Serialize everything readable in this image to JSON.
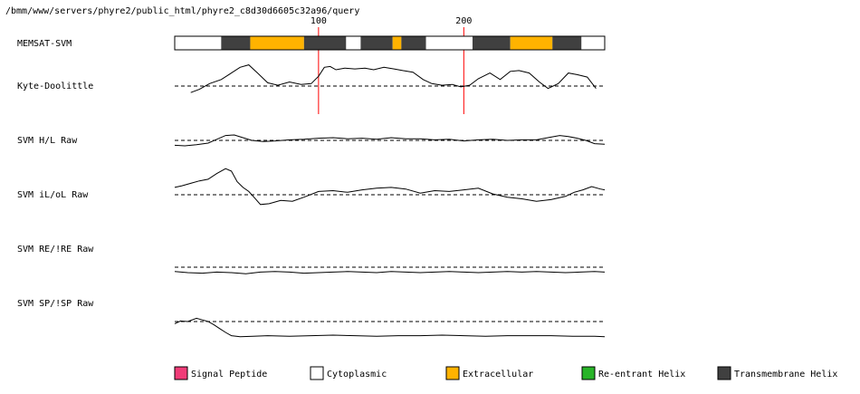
{
  "path_label": "/bmm/www/servers/phyre2/public_html/phyre2_c8d30d6605c32a96/query",
  "colors": {
    "cytoplasmic": "#ffffff",
    "extracellular": "#ffb300",
    "transmembrane": "#404040",
    "signal_peptide": "#f03c78",
    "reentrant": "#28b428",
    "marker": "#ff0000"
  },
  "chart_data": {
    "type": "line",
    "x_range": [
      1,
      297
    ],
    "position_markers": [
      100,
      200
    ],
    "position_marker_labels": [
      "100",
      "200"
    ],
    "memsat": {
      "label": "MEMSAT-SVM",
      "segments": [
        {
          "start": 1,
          "end": 33,
          "type": "cytoplasmic"
        },
        {
          "start": 33,
          "end": 53,
          "type": "transmembrane"
        },
        {
          "start": 53,
          "end": 90,
          "type": "extracellular"
        },
        {
          "start": 90,
          "end": 119,
          "type": "transmembrane"
        },
        {
          "start": 119,
          "end": 129,
          "type": "cytoplasmic"
        },
        {
          "start": 129,
          "end": 151,
          "type": "transmembrane"
        },
        {
          "start": 151,
          "end": 157,
          "type": "extracellular"
        },
        {
          "start": 157,
          "end": 174,
          "type": "transmembrane"
        },
        {
          "start": 174,
          "end": 206,
          "type": "cytoplasmic"
        },
        {
          "start": 206,
          "end": 232,
          "type": "transmembrane"
        },
        {
          "start": 232,
          "end": 261,
          "type": "extracellular"
        },
        {
          "start": 261,
          "end": 281,
          "type": "transmembrane"
        },
        {
          "start": 281,
          "end": 297,
          "type": "cytoplasmic"
        }
      ]
    },
    "series": [
      {
        "name": "Kyte-Doolittle",
        "x": [
          12,
          18,
          25,
          33,
          40,
          46,
          52,
          58,
          65,
          72,
          80,
          88,
          95,
          100,
          104,
          108,
          112,
          118,
          125,
          132,
          138,
          145,
          152,
          158,
          165,
          172,
          178,
          185,
          192,
          198,
          204,
          210,
          218,
          225,
          232,
          238,
          245,
          252,
          258,
          265,
          272,
          278,
          285,
          291
        ],
        "y": [
          -0.8,
          -0.4,
          0.3,
          0.8,
          1.6,
          2.3,
          2.6,
          1.6,
          0.4,
          0.1,
          0.5,
          0.2,
          0.3,
          1.2,
          2.3,
          2.4,
          2.0,
          2.2,
          2.1,
          2.2,
          2.0,
          2.3,
          2.1,
          1.9,
          1.7,
          0.8,
          0.3,
          0.1,
          0.2,
          -0.1,
          0.1,
          0.9,
          1.6,
          0.8,
          1.8,
          1.9,
          1.6,
          0.5,
          -0.3,
          0.3,
          1.6,
          1.4,
          1.1,
          -0.3
        ]
      },
      {
        "name": "SVM H/L Raw",
        "x": [
          1,
          8,
          16,
          24,
          30,
          36,
          42,
          48,
          54,
          62,
          70,
          80,
          90,
          100,
          110,
          120,
          130,
          140,
          150,
          160,
          170,
          180,
          190,
          200,
          210,
          220,
          230,
          240,
          250,
          260,
          266,
          272,
          278,
          284,
          290,
          297
        ],
        "y": [
          -0.9,
          -1.0,
          -0.8,
          -0.5,
          0.2,
          0.9,
          1.0,
          0.5,
          0.0,
          -0.2,
          -0.1,
          0.1,
          0.2,
          0.4,
          0.5,
          0.3,
          0.4,
          0.2,
          0.5,
          0.3,
          0.3,
          0.1,
          0.2,
          -0.1,
          0.1,
          0.2,
          0.0,
          0.1,
          0.1,
          0.6,
          0.9,
          0.7,
          0.4,
          0.0,
          -0.6,
          -0.7
        ]
      },
      {
        "name": "SVM iL/oL Raw",
        "x": [
          1,
          6,
          12,
          18,
          24,
          30,
          36,
          40,
          44,
          48,
          52,
          56,
          60,
          66,
          74,
          82,
          90,
          100,
          110,
          120,
          130,
          140,
          150,
          160,
          170,
          180,
          190,
          200,
          210,
          220,
          230,
          240,
          250,
          260,
          270,
          276,
          282,
          288,
          294,
          297
        ],
        "y": [
          0.9,
          1.1,
          1.4,
          1.7,
          1.9,
          2.6,
          3.2,
          2.9,
          1.6,
          0.9,
          0.4,
          -0.4,
          -1.2,
          -1.1,
          -0.7,
          -0.8,
          -0.3,
          0.4,
          0.5,
          0.3,
          0.6,
          0.8,
          0.9,
          0.7,
          0.2,
          0.5,
          0.4,
          0.6,
          0.8,
          0.1,
          -0.3,
          -0.5,
          -0.8,
          -0.6,
          -0.2,
          0.3,
          0.6,
          1.0,
          0.7,
          0.6
        ]
      },
      {
        "name": "SVM RE/!RE Raw",
        "x": [
          1,
          10,
          20,
          30,
          40,
          50,
          60,
          70,
          80,
          90,
          100,
          110,
          120,
          130,
          140,
          150,
          160,
          170,
          180,
          190,
          200,
          210,
          220,
          230,
          240,
          250,
          260,
          270,
          280,
          290,
          297
        ],
        "y": [
          -0.8,
          -1.0,
          -1.1,
          -0.9,
          -1.0,
          -1.2,
          -0.9,
          -0.8,
          -0.9,
          -1.1,
          -1.0,
          -0.9,
          -0.8,
          -0.9,
          -1.0,
          -0.8,
          -0.9,
          -1.0,
          -0.9,
          -0.8,
          -0.9,
          -1.0,
          -0.9,
          -0.8,
          -0.9,
          -0.8,
          -0.9,
          -1.0,
          -0.9,
          -0.8,
          -0.9
        ]
      },
      {
        "name": "SVM SP/!SP Raw",
        "x": [
          1,
          5,
          10,
          16,
          20,
          24,
          28,
          32,
          36,
          40,
          46,
          55,
          65,
          80,
          95,
          110,
          125,
          140,
          155,
          170,
          185,
          200,
          215,
          230,
          245,
          260,
          275,
          290,
          297
        ],
        "y": [
          -0.4,
          0.1,
          0.0,
          0.6,
          0.3,
          0.0,
          -0.6,
          -1.3,
          -2.0,
          -2.6,
          -2.8,
          -2.7,
          -2.6,
          -2.7,
          -2.6,
          -2.5,
          -2.6,
          -2.7,
          -2.6,
          -2.6,
          -2.5,
          -2.6,
          -2.7,
          -2.6,
          -2.6,
          -2.6,
          -2.7,
          -2.7,
          -2.8
        ]
      }
    ],
    "legend": [
      "Signal Peptide",
      "Cytoplasmic",
      "Extracellular",
      "Re-entrant Helix",
      "Transmembrane Helix"
    ],
    "legend_position": "bottom",
    "baseline_dashed": true
  }
}
